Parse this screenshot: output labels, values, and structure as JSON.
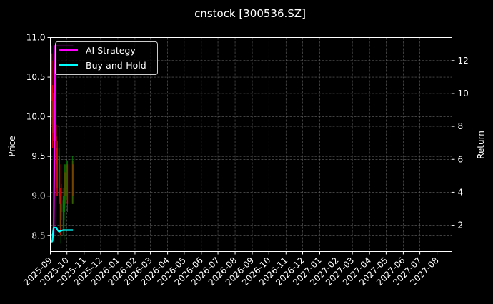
{
  "chart_data": {
    "type": "candlestick+line",
    "title": "cnstock [300536.SZ]",
    "ylabel_left": "Price",
    "ylabel_right": "Return",
    "ylim_left": [
      8.3,
      11.0
    ],
    "ylim_right": [
      0.4,
      13.4
    ],
    "xlim": [
      "2025-09-01",
      "2027-08-28"
    ],
    "left_ticks": [
      "8.5",
      "9.0",
      "9.5",
      "10.0",
      "10.5",
      "11.0"
    ],
    "right_ticks": [
      "2",
      "4",
      "6",
      "8",
      "10",
      "12"
    ],
    "x_ticks": [
      "2025-09",
      "2025-10",
      "2025-11",
      "2025-12",
      "2026-01",
      "2026-02",
      "2026-03",
      "2026-04",
      "2026-05",
      "2026-06",
      "2026-07",
      "2026-08",
      "2026-09",
      "2026-10",
      "2026-11",
      "2026-12",
      "2027-01",
      "2027-02",
      "2027-03",
      "2027-04",
      "2027-05",
      "2027-06",
      "2027-07",
      "2027-08"
    ],
    "grid": true,
    "legend_placement": "upper-left",
    "colors": {
      "up": "#008000",
      "down": "#ff0000",
      "ai": "#ff00ff",
      "bh": "#00ffff",
      "background": "#000000"
    },
    "candles": [
      {
        "date": "2025-09-01",
        "o": 10.0,
        "h": 10.9,
        "l": 9.9,
        "c": 10.7
      },
      {
        "date": "2025-09-02",
        "o": 10.7,
        "h": 10.8,
        "l": 10.2,
        "c": 10.3
      },
      {
        "date": "2025-09-03",
        "o": 10.3,
        "h": 10.4,
        "l": 9.6,
        "c": 9.8
      },
      {
        "date": "2025-09-04",
        "o": 9.8,
        "h": 10.3,
        "l": 9.7,
        "c": 10.2
      },
      {
        "date": "2025-09-05",
        "o": 10.2,
        "h": 10.2,
        "l": 9.8,
        "c": 9.9
      },
      {
        "date": "2025-09-08",
        "o": 9.9,
        "h": 10.2,
        "l": 9.7,
        "c": 10.1
      },
      {
        "date": "2025-09-09",
        "o": 10.1,
        "h": 10.15,
        "l": 9.7,
        "c": 9.75
      },
      {
        "date": "2025-09-10",
        "o": 9.75,
        "h": 9.9,
        "l": 9.4,
        "c": 9.5
      },
      {
        "date": "2025-09-11",
        "o": 9.5,
        "h": 9.6,
        "l": 9.0,
        "c": 9.1
      },
      {
        "date": "2025-09-12",
        "o": 9.1,
        "h": 9.7,
        "l": 9.0,
        "c": 9.6
      },
      {
        "date": "2025-09-15",
        "o": 9.6,
        "h": 9.87,
        "l": 9.3,
        "c": 9.4
      },
      {
        "date": "2025-09-16",
        "o": 9.4,
        "h": 9.5,
        "l": 8.9,
        "c": 9.0
      },
      {
        "date": "2025-09-17",
        "o": 9.0,
        "h": 9.1,
        "l": 8.5,
        "c": 8.6
      },
      {
        "date": "2025-09-18",
        "o": 8.6,
        "h": 9.0,
        "l": 8.4,
        "c": 8.9
      },
      {
        "date": "2025-09-19",
        "o": 8.9,
        "h": 9.15,
        "l": 8.7,
        "c": 8.8
      },
      {
        "date": "2025-09-22",
        "o": 8.8,
        "h": 9.0,
        "l": 8.5,
        "c": 8.95
      },
      {
        "date": "2025-09-23",
        "o": 8.95,
        "h": 9.1,
        "l": 8.6,
        "c": 8.7
      },
      {
        "date": "2025-09-24",
        "o": 8.7,
        "h": 8.9,
        "l": 8.45,
        "c": 8.85
      },
      {
        "date": "2025-09-25",
        "o": 8.85,
        "h": 9.4,
        "l": 8.8,
        "c": 9.3
      },
      {
        "date": "2025-09-26",
        "o": 9.3,
        "h": 9.4,
        "l": 8.9,
        "c": 9.0
      },
      {
        "date": "2025-09-29",
        "o": 9.0,
        "h": 9.45,
        "l": 8.95,
        "c": 9.4
      },
      {
        "date": "2025-09-30",
        "o": 9.4,
        "h": 9.45,
        "l": 8.8,
        "c": 8.9
      },
      {
        "date": "2025-10-09",
        "o": 8.9,
        "h": 9.5,
        "l": 8.9,
        "c": 9.45
      },
      {
        "date": "2025-10-10",
        "o": 9.4,
        "h": 9.45,
        "l": 8.9,
        "c": 9.0
      }
    ],
    "series": [
      {
        "name": "AI Strategy",
        "dates": [
          "2025-09-01",
          "2025-09-02",
          "2025-09-03",
          "2025-09-04",
          "2025-09-05",
          "2025-09-08",
          "2025-09-30",
          "2025-10-10"
        ],
        "values": [
          1.4,
          1.4,
          1.4,
          1.4,
          1.4,
          12.9,
          12.9,
          12.9
        ]
      },
      {
        "name": "Buy-and-Hold",
        "dates": [
          "2025-09-01",
          "2025-09-02",
          "2025-09-03",
          "2025-09-04",
          "2025-09-05",
          "2025-09-08",
          "2025-09-10",
          "2025-09-12",
          "2025-09-15",
          "2025-09-17",
          "2025-09-22",
          "2025-09-30",
          "2025-10-10"
        ],
        "values": [
          1.05,
          1.0,
          1.05,
          1.6,
          1.85,
          1.85,
          1.85,
          1.7,
          1.6,
          1.65,
          1.7,
          1.7,
          1.7
        ]
      }
    ]
  }
}
